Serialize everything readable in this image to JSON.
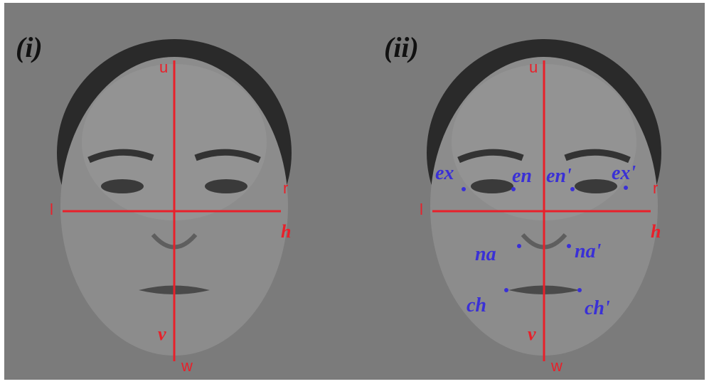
{
  "panels": [
    {
      "label": "(i)",
      "axis_labels": {
        "top": "u",
        "left": "l",
        "right": "r",
        "horizontal": "h",
        "vertical": "v",
        "bottom": "w"
      }
    },
    {
      "label": "(ii)",
      "axis_labels": {
        "top": "u",
        "left": "l",
        "right": "r",
        "horizontal": "h",
        "vertical": "v",
        "bottom": "w"
      },
      "landmarks": [
        "ex",
        "en",
        "en'",
        "ex'",
        "na",
        "na'",
        "ch",
        "ch'"
      ]
    }
  ]
}
